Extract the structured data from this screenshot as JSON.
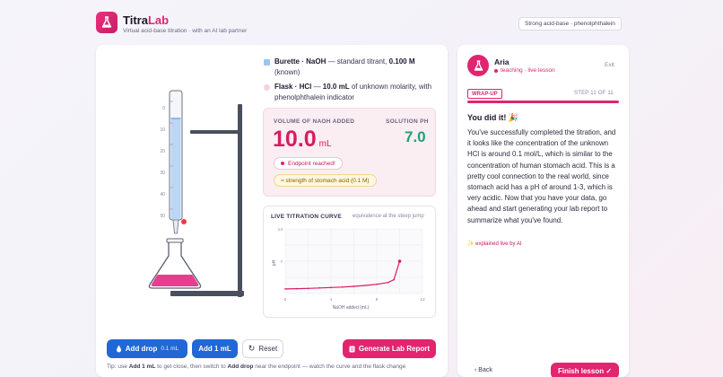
{
  "app": {
    "name_prefix": "Titra",
    "name_suffix": "Lab",
    "tagline": "Virtual acid-base titration · with an AI lab partner",
    "mode": "Strong acid-base · phenolphthalein"
  },
  "legend": {
    "burette_label": "Burette · NaOH",
    "burette_desc": " — standard titrant, ",
    "burette_conc": "0.100 M",
    "burette_note": "(known)",
    "flask_label": "Flask · HCl",
    "flask_desc": " — ",
    "flask_volume": "10.0 mL",
    "flask_note": " of unknown molarity, with phenolphthalein indicator",
    "burette_color": "#9fc4f0",
    "flask_color": "#f6d1de"
  },
  "burette": {
    "tick_labels": [
      "0",
      "10",
      "20",
      "30",
      "40",
      "50"
    ]
  },
  "readout": {
    "volume_label": "VOLUME OF NAOH ADDED",
    "volume_value": "10.0",
    "volume_unit": "mL",
    "ph_label": "SOLUTION PH",
    "ph_value": "7.0",
    "endpoint_chip": "Endpoint reached!",
    "stomach_chip": "≈ strength of stomach acid (0.1 M)"
  },
  "chart_data": {
    "type": "line",
    "title": "LIVE TITRATION CURVE",
    "annotation": "equivalence at the steep jump",
    "xlabel": "NaOH added (mL)",
    "ylabel": "pH",
    "xlim": [
      0,
      12
    ],
    "ylim": [
      0,
      14
    ],
    "x_ticks": [
      "0",
      "4",
      "8",
      "12"
    ],
    "y_ticks": [
      "14",
      "7"
    ],
    "grid": true,
    "series": [
      {
        "x": [
          0,
          1,
          2,
          3,
          4,
          5,
          6,
          7,
          8,
          9,
          9.5,
          10
        ],
        "y": [
          1.0,
          1.05,
          1.1,
          1.2,
          1.3,
          1.4,
          1.55,
          1.75,
          2.0,
          2.4,
          3.0,
          7.0
        ]
      }
    ],
    "line_color": "#d81c62"
  },
  "actions": {
    "add_drop_label": "Add drop",
    "add_drop_sub": "0.1 mL",
    "add_ml_label": "Add 1 mL",
    "reset_label": "Reset",
    "report_label": "Generate Lab Report"
  },
  "tip": {
    "prefix": "Tip: use ",
    "bold1": "Add 1 mL",
    "middle": " to get close, then switch to ",
    "bold2": "Add drop",
    "suffix": " near the endpoint — watch the curve and the flask change"
  },
  "aria": {
    "name": "Aria",
    "status": "teaching · live lesson",
    "exit": "Exit",
    "badge": "WRAP-UP",
    "step": "STEP 11 OF 11",
    "progress": 1.0,
    "heading": "You did it! 🎉",
    "message": "You've successfully completed the titration, and it looks like the concentration of the unknown HCl is around 0.1 mol/L, which is similar to the concentration of human stomach acid. This is a pretty cool connection to the real world, since stomach acid has a pH of around 1-3, which is very acidic. Now that you have your data, go ahead and start generating your lab report to summarize what you've found.",
    "live_note": "✨ explained live by AI",
    "back": "‹ Back",
    "finish": "Finish lesson ✓"
  },
  "colors": {
    "accent": "#e0246f",
    "primary_blue": "#2267d6",
    "ph_green": "#1fa176"
  }
}
